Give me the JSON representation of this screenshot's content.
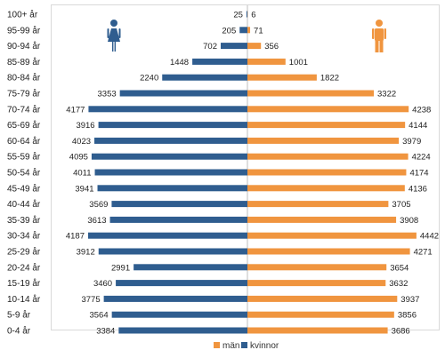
{
  "chart_data": {
    "type": "bar",
    "orientation": "horizontal",
    "layout": "population-pyramid",
    "categories": [
      "100+ år",
      "95-99 år",
      "90-94 år",
      "85-89 år",
      "80-84 år",
      "75-79 år",
      "70-74 år",
      "65-69 år",
      "60-64 år",
      "55-59 år",
      "50-54 år",
      "45-49 år",
      "40-44 år",
      "35-39 år",
      "30-34 år",
      "25-29 år",
      "20-24 år",
      "15-19 år",
      "10-14 år",
      "5-9 år",
      "0-4 år"
    ],
    "series": [
      {
        "name": "kvinnor",
        "side": "left",
        "color": "#2f5d8f",
        "values": [
          25,
          205,
          702,
          1448,
          2240,
          3353,
          4177,
          3916,
          4023,
          4095,
          4011,
          3941,
          3569,
          3613,
          4187,
          3912,
          2991,
          3460,
          3775,
          3564,
          3384
        ]
      },
      {
        "name": "män",
        "side": "right",
        "color": "#f0953f",
        "values": [
          6,
          71,
          356,
          1001,
          1822,
          3322,
          4238,
          4144,
          3979,
          4224,
          4174,
          4136,
          3705,
          3908,
          4442,
          4271,
          3654,
          3632,
          3937,
          3856,
          3686
        ]
      }
    ],
    "legend": {
      "position": "bottom-right",
      "order": [
        "män",
        "kvinnor"
      ]
    },
    "icons": {
      "left": "female-person-icon",
      "right": "male-person-icon"
    },
    "grid": false
  }
}
